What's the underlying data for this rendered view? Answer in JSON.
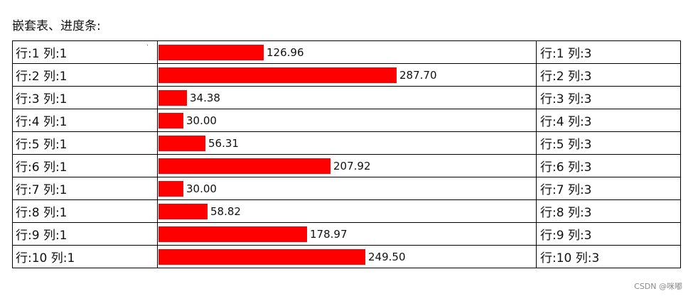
{
  "heading": "嵌套表、进度条:",
  "bar_color": "#ff0000",
  "rows": [
    {
      "col1": "行:1 列:1",
      "value": 126.96,
      "value_label": "126.96",
      "col3": "行:1 列:3"
    },
    {
      "col1": "行:2 列:1",
      "value": 287.7,
      "value_label": "287.70",
      "col3": "行:2 列:3"
    },
    {
      "col1": "行:3 列:1",
      "value": 34.38,
      "value_label": "34.38",
      "col3": "行:3 列:3"
    },
    {
      "col1": "行:4 列:1",
      "value": 30.0,
      "value_label": "30.00",
      "col3": "行:4 列:3"
    },
    {
      "col1": "行:5 列:1",
      "value": 56.31,
      "value_label": "56.31",
      "col3": "行:5 列:3"
    },
    {
      "col1": "行:6 列:1",
      "value": 207.92,
      "value_label": "207.92",
      "col3": "行:6 列:3"
    },
    {
      "col1": "行:7 列:1",
      "value": 30.0,
      "value_label": "30.00",
      "col3": "行:7 列:3"
    },
    {
      "col1": "行:8 列:1",
      "value": 58.82,
      "value_label": "58.82",
      "col3": "行:8 列:3"
    },
    {
      "col1": "行:9 列:1",
      "value": 178.97,
      "value_label": "178.97",
      "col3": "行:9 列:3"
    },
    {
      "col1": "行:10 列:1",
      "value": 249.5,
      "value_label": "249.50",
      "col3": "行:10 列:3"
    }
  ],
  "watermark": "CSDN @咪嘟"
}
